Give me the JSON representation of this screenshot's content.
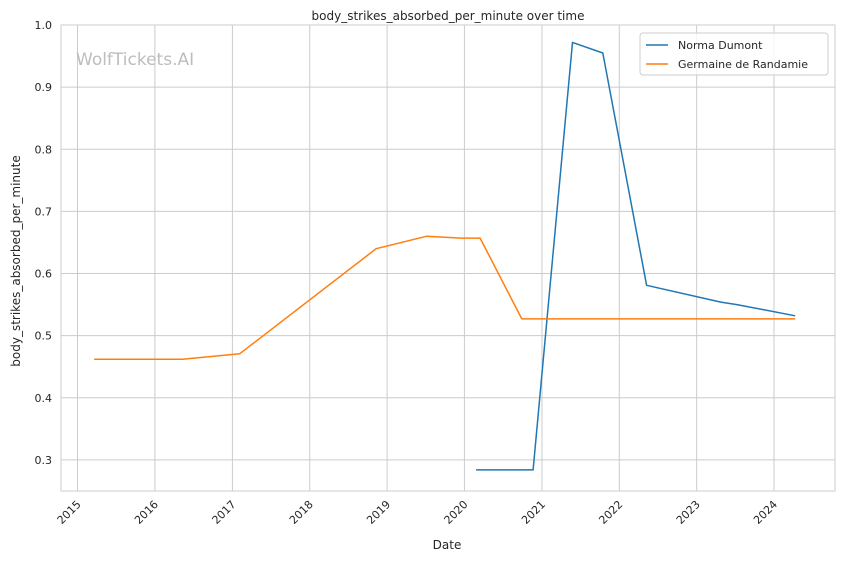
{
  "chart_data": {
    "type": "line",
    "title": "body_strikes_absorbed_per_minute over time",
    "xlabel": "Date",
    "ylabel": "body_strikes_absorbed_per_minute",
    "watermark": "WolfTickets.AI",
    "x_axis_type": "date",
    "xlim": [
      "2014-10-15",
      "2024-10-15"
    ],
    "ylim": [
      0.25,
      1.0
    ],
    "x_ticks": [
      "2015",
      "2016",
      "2017",
      "2018",
      "2019",
      "2020",
      "2021",
      "2022",
      "2023",
      "2024"
    ],
    "y_ticks": [
      "0.3",
      "0.4",
      "0.5",
      "0.6",
      "0.7",
      "0.8",
      "0.9",
      "1.0"
    ],
    "grid": true,
    "legend_position": "top-right",
    "series": [
      {
        "name": "Norma Dumont",
        "color": "#1f77b4",
        "points": [
          [
            "2020-02-25",
            0.284
          ],
          [
            "2020-11-20",
            0.284
          ],
          [
            "2021-05-25",
            0.972
          ],
          [
            "2021-10-15",
            0.955
          ],
          [
            "2022-05-10",
            0.581
          ],
          [
            "2023-04-25",
            0.554
          ],
          [
            "2023-07-10",
            0.55
          ],
          [
            "2024-04-10",
            0.532
          ]
        ]
      },
      {
        "name": "Germaine de Randamie",
        "color": "#ff7f0e",
        "points": [
          [
            "2015-03-20",
            0.462
          ],
          [
            "2016-05-10",
            0.462
          ],
          [
            "2017-02-05",
            0.471
          ],
          [
            "2018-11-10",
            0.64
          ],
          [
            "2019-07-05",
            0.66
          ],
          [
            "2019-12-15",
            0.657
          ],
          [
            "2020-03-15",
            0.657
          ],
          [
            "2020-09-28",
            0.527
          ],
          [
            "2024-04-10",
            0.527
          ]
        ]
      }
    ]
  }
}
